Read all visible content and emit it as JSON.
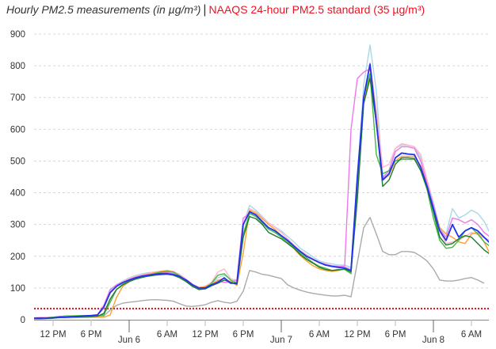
{
  "title": {
    "measurements": "Hourly PM2.5 measurements (in µg/m³)",
    "separator": "|",
    "standard": "NAAQS 24-hour PM2.5 standard (35 µg/m³)"
  },
  "colors": {
    "standard": "#ee1122",
    "grid": "#d8d8d8",
    "axis": "#888888"
  },
  "chart_data": {
    "type": "line",
    "title": "Hourly PM2.5 measurements (in µg/m³)",
    "xlabel": "",
    "ylabel": "",
    "ylim": [
      0,
      900
    ],
    "yticks": [
      0,
      100,
      200,
      300,
      400,
      500,
      600,
      700,
      800,
      900
    ],
    "xticks": [
      {
        "label": "12 PM",
        "t": "Jun 5 12:00",
        "major": false
      },
      {
        "label": "6 PM",
        "t": "Jun 5 18:00",
        "major": false
      },
      {
        "label": "Jun  6",
        "t": "Jun 6 00:00",
        "major": true
      },
      {
        "label": "6 AM",
        "t": "Jun 6 06:00",
        "major": false
      },
      {
        "label": "12 PM",
        "t": "Jun 6 12:00",
        "major": false
      },
      {
        "label": "6 PM",
        "t": "Jun 6 18:00",
        "major": false
      },
      {
        "label": "Jun  7",
        "t": "Jun 7 00:00",
        "major": true
      },
      {
        "label": "6 AM",
        "t": "Jun 7 06:00",
        "major": false
      },
      {
        "label": "12 PM",
        "t": "Jun 7 12:00",
        "major": false
      },
      {
        "label": "6 PM",
        "t": "Jun 7 18:00",
        "major": false
      },
      {
        "label": "Jun  8",
        "t": "Jun 8 00:00",
        "major": true
      },
      {
        "label": "6 AM",
        "t": "Jun 8 06:00",
        "major": false
      }
    ],
    "grid": true,
    "reference_line": {
      "label": "NAAQS 24-hour PM2.5 standard (35 µg/m³)",
      "value": 35,
      "color": "#ee1122",
      "style": "dotted"
    },
    "x": [
      "Jun 5 09:00",
      "Jun 5 10:00",
      "Jun 5 11:00",
      "Jun 5 12:00",
      "Jun 5 13:00",
      "Jun 5 14:00",
      "Jun 5 15:00",
      "Jun 5 16:00",
      "Jun 5 17:00",
      "Jun 5 18:00",
      "Jun 5 19:00",
      "Jun 5 20:00",
      "Jun 5 21:00",
      "Jun 5 22:00",
      "Jun 5 23:00",
      "Jun 6 00:00",
      "Jun 6 01:00",
      "Jun 6 02:00",
      "Jun 6 03:00",
      "Jun 6 04:00",
      "Jun 6 05:00",
      "Jun 6 06:00",
      "Jun 6 07:00",
      "Jun 6 08:00",
      "Jun 6 09:00",
      "Jun 6 10:00",
      "Jun 6 11:00",
      "Jun 6 12:00",
      "Jun 6 13:00",
      "Jun 6 14:00",
      "Jun 6 15:00",
      "Jun 6 16:00",
      "Jun 6 17:00",
      "Jun 6 18:00",
      "Jun 6 19:00",
      "Jun 6 20:00",
      "Jun 6 21:00",
      "Jun 6 22:00",
      "Jun 6 23:00",
      "Jun 7 00:00",
      "Jun 7 01:00",
      "Jun 7 02:00",
      "Jun 7 03:00",
      "Jun 7 04:00",
      "Jun 7 05:00",
      "Jun 7 06:00",
      "Jun 7 07:00",
      "Jun 7 08:00",
      "Jun 7 09:00",
      "Jun 7 10:00",
      "Jun 7 11:00",
      "Jun 7 12:00",
      "Jun 7 13:00",
      "Jun 7 14:00",
      "Jun 7 15:00",
      "Jun 7 16:00",
      "Jun 7 17:00",
      "Jun 7 18:00",
      "Jun 7 19:00",
      "Jun 7 20:00",
      "Jun 7 21:00",
      "Jun 7 22:00",
      "Jun 7 23:00",
      "Jun 8 00:00",
      "Jun 8 01:00",
      "Jun 8 02:00",
      "Jun 8 03:00",
      "Jun 8 04:00",
      "Jun 8 05:00",
      "Jun 8 06:00",
      "Jun 8 07:00",
      "Jun 8 08:00",
      "Jun 8 09:00"
    ],
    "series": [
      {
        "color": "#aaaaaa",
        "values": [
          5,
          5,
          5,
          5,
          6,
          6,
          6,
          7,
          7,
          8,
          8,
          12,
          30,
          45,
          52,
          55,
          57,
          60,
          62,
          63,
          62,
          61,
          58,
          50,
          43,
          42,
          44,
          47,
          55,
          60,
          55,
          52,
          58,
          90,
          155,
          150,
          143,
          140,
          135,
          130,
          110,
          100,
          93,
          87,
          83,
          80,
          77,
          75,
          75,
          77,
          72,
          180,
          290,
          322,
          270,
          215,
          205,
          205,
          215,
          215,
          212,
          200,
          185,
          160,
          125,
          122,
          122,
          125,
          130,
          133,
          125,
          115,
          null
        ]
      },
      {
        "color": "#a8d8e8",
        "values": [
          5,
          6,
          7,
          8,
          9,
          10,
          11,
          12,
          12,
          13,
          14,
          40,
          90,
          110,
          122,
          132,
          139,
          144,
          148,
          150,
          152,
          152,
          148,
          138,
          125,
          110,
          100,
          102,
          115,
          132,
          140,
          128,
          125,
          300,
          360,
          345,
          325,
          305,
          292,
          280,
          262,
          245,
          225,
          212,
          198,
          185,
          180,
          176,
          172,
          172,
          165,
          430,
          740,
          865,
          720,
          450,
          470,
          540,
          550,
          550,
          545,
          510,
          440,
          370,
          290,
          270,
          350,
          320,
          330,
          345,
          335,
          310,
          270
        ]
      },
      {
        "color": "#ffb6c8",
        "values": [
          5,
          6,
          7,
          8,
          9,
          10,
          11,
          12,
          12,
          13,
          14,
          35,
          85,
          108,
          120,
          130,
          137,
          142,
          146,
          150,
          153,
          155,
          152,
          142,
          128,
          112,
          103,
          105,
          118,
          150,
          160,
          130,
          120,
          300,
          350,
          340,
          320,
          305,
          292,
          275,
          255,
          235,
          218,
          205,
          192,
          182,
          175,
          170,
          168,
          168,
          160,
          440,
          700,
          810,
          660,
          480,
          490,
          540,
          555,
          550,
          545,
          520,
          440,
          360,
          280,
          240,
          245,
          250,
          262,
          275,
          268,
          258,
          250
        ]
      },
      {
        "color": "#ee77ee",
        "values": [
          6,
          7,
          7,
          8,
          10,
          10,
          11,
          12,
          13,
          14,
          16,
          45,
          95,
          110,
          118,
          127,
          134,
          139,
          143,
          146,
          148,
          148,
          145,
          137,
          125,
          110,
          100,
          102,
          112,
          122,
          118,
          118,
          125,
          320,
          335,
          325,
          305,
          290,
          280,
          265,
          250,
          232,
          215,
          200,
          190,
          180,
          175,
          170,
          168,
          168,
          600,
          760,
          780,
          790,
          640,
          445,
          470,
          530,
          545,
          545,
          540,
          500,
          430,
          360,
          285,
          260,
          320,
          315,
          305,
          315,
          300,
          275,
          260
        ]
      },
      {
        "color": "#ffa030",
        "values": [
          4,
          4,
          5,
          6,
          8,
          10,
          10,
          11,
          11,
          10,
          8,
          8,
          15,
          70,
          105,
          120,
          130,
          137,
          142,
          148,
          152,
          155,
          150,
          138,
          122,
          108,
          100,
          105,
          112,
          125,
          130,
          120,
          108,
          210,
          345,
          335,
          318,
          300,
          285,
          265,
          245,
          225,
          202,
          185,
          170,
          160,
          155,
          152,
          155,
          160,
          150,
          390,
          690,
          770,
          640,
          440,
          455,
          500,
          515,
          515,
          515,
          485,
          425,
          350,
          290,
          270,
          260,
          245,
          240,
          270,
          275,
          245,
          205
        ]
      },
      {
        "color": "#44bb44",
        "values": [
          4,
          5,
          6,
          8,
          10,
          12,
          12,
          13,
          13,
          13,
          12,
          15,
          55,
          95,
          112,
          122,
          130,
          135,
          140,
          145,
          150,
          152,
          150,
          138,
          122,
          105,
          97,
          100,
          115,
          140,
          145,
          125,
          115,
          270,
          335,
          325,
          305,
          285,
          275,
          260,
          245,
          228,
          210,
          195,
          180,
          168,
          162,
          155,
          158,
          158,
          145,
          420,
          700,
          775,
          520,
          460,
          470,
          500,
          505,
          505,
          505,
          470,
          410,
          320,
          250,
          225,
          228,
          250,
          280,
          290,
          270,
          245,
          230
        ]
      },
      {
        "color": "#1f7a2f",
        "values": [
          3,
          3,
          4,
          5,
          7,
          8,
          9,
          9,
          10,
          10,
          11,
          20,
          65,
          95,
          110,
          120,
          128,
          133,
          137,
          140,
          142,
          143,
          140,
          132,
          120,
          105,
          95,
          97,
          107,
          115,
          125,
          118,
          112,
          260,
          325,
          318,
          300,
          275,
          265,
          255,
          240,
          225,
          205,
          190,
          178,
          165,
          158,
          155,
          157,
          160,
          150,
          380,
          680,
          760,
          620,
          420,
          440,
          490,
          510,
          510,
          508,
          470,
          415,
          340,
          260,
          235,
          240,
          255,
          265,
          260,
          240,
          220,
          205
        ]
      },
      {
        "color": "#2233ee",
        "values": [
          5,
          5,
          5,
          6,
          8,
          8,
          10,
          10,
          12,
          13,
          15,
          40,
          85,
          105,
          117,
          125,
          132,
          137,
          140,
          143,
          145,
          145,
          142,
          136,
          125,
          110,
          100,
          100,
          110,
          118,
          132,
          115,
          115,
          300,
          340,
          330,
          310,
          290,
          280,
          265,
          250,
          232,
          215,
          200,
          190,
          180,
          172,
          168,
          165,
          163,
          155,
          450,
          700,
          805,
          620,
          440,
          460,
          510,
          525,
          522,
          520,
          480,
          420,
          350,
          280,
          250,
          300,
          260,
          280,
          290,
          280,
          260,
          240
        ]
      }
    ]
  }
}
